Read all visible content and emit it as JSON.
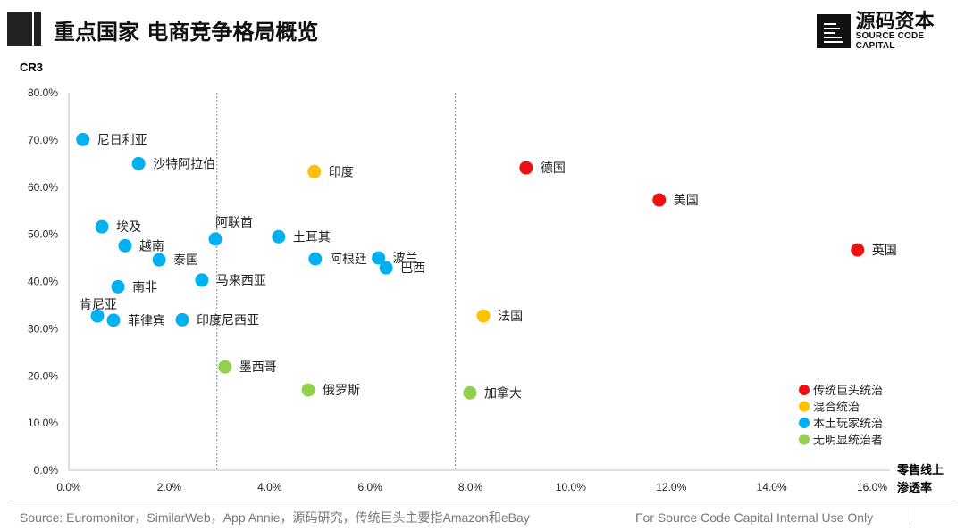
{
  "header": {
    "title": "重点国家 电商竞争格局概览"
  },
  "logo": {
    "cn": "源码资本",
    "en": "SOURCE CODE CAPITAL"
  },
  "footer": {
    "source": "Source: Euromonitor，SimilarWeb，App Annie，源码研究，传统巨头主要指Amazon和eBay",
    "note": "For Source Code Capital Internal Use Only"
  },
  "chart_data": {
    "type": "scatter",
    "title": "重点国家 电商竞争格局概览",
    "xlabel": "零售线上渗透率",
    "xlabel_lines": [
      "零售线上",
      "渗透率"
    ],
    "ylabel": "CR3",
    "xlim": [
      0,
      16
    ],
    "ylim": [
      0,
      80
    ],
    "xticks": [
      "0.0%",
      "2.0%",
      "4.0%",
      "6.0%",
      "8.0%",
      "10.0%",
      "12.0%",
      "14.0%",
      "16.0%"
    ],
    "yticks": [
      "0.0%",
      "10.0%",
      "20.0%",
      "30.0%",
      "40.0%",
      "50.0%",
      "60.0%",
      "70.0%",
      "80.0%"
    ],
    "reference_lines_x": [
      2.95,
      7.7
    ],
    "legend_position": "bottom-right",
    "categories": [
      {
        "key": "traditional",
        "name": "传统巨头统治",
        "color": "#ee1111"
      },
      {
        "key": "mixed",
        "name": "混合统治",
        "color": "#ffc000"
      },
      {
        "key": "local",
        "name": "本土玩家统治",
        "color": "#00b0f0"
      },
      {
        "key": "none",
        "name": "无明显统治者",
        "color": "#92d050"
      }
    ],
    "points": [
      {
        "label": "尼日利亚",
        "x": 0.28,
        "y": 70.1,
        "cat": "local"
      },
      {
        "label": "沙特阿拉伯",
        "x": 1.39,
        "y": 65.0,
        "cat": "local"
      },
      {
        "label": "印度",
        "x": 4.89,
        "y": 63.3,
        "cat": "mixed"
      },
      {
        "label": "德国",
        "x": 9.11,
        "y": 64.1,
        "cat": "traditional"
      },
      {
        "label": "美国",
        "x": 11.76,
        "y": 57.3,
        "cat": "traditional"
      },
      {
        "label": "英国",
        "x": 15.71,
        "y": 46.7,
        "cat": "traditional"
      },
      {
        "label": "埃及",
        "x": 0.66,
        "y": 51.6,
        "cat": "local"
      },
      {
        "label": "越南",
        "x": 1.12,
        "y": 47.6,
        "cat": "local"
      },
      {
        "label": "泰国",
        "x": 1.8,
        "y": 44.6,
        "cat": "local"
      },
      {
        "label": "阿联酋",
        "x": 2.92,
        "y": 49.0,
        "cat": "local"
      },
      {
        "label": "土耳其",
        "x": 4.18,
        "y": 49.5,
        "cat": "local"
      },
      {
        "label": "阿根廷",
        "x": 4.91,
        "y": 44.8,
        "cat": "local"
      },
      {
        "label": "波兰",
        "x": 6.17,
        "y": 45.0,
        "cat": "local"
      },
      {
        "label": "巴西",
        "x": 6.32,
        "y": 42.9,
        "cat": "local"
      },
      {
        "label": "南非",
        "x": 0.98,
        "y": 38.9,
        "cat": "local"
      },
      {
        "label": "马来西亚",
        "x": 2.65,
        "y": 40.3,
        "cat": "local"
      },
      {
        "label": "肯尼亚",
        "x": 0.57,
        "y": 32.7,
        "cat": "local"
      },
      {
        "label": "菲律宾",
        "x": 0.89,
        "y": 31.8,
        "cat": "local"
      },
      {
        "label": "印度尼西亚",
        "x": 2.26,
        "y": 31.9,
        "cat": "local"
      },
      {
        "label": "法国",
        "x": 8.26,
        "y": 32.7,
        "cat": "mixed"
      },
      {
        "label": "墨西哥",
        "x": 3.11,
        "y": 21.9,
        "cat": "none"
      },
      {
        "label": "俄罗斯",
        "x": 4.77,
        "y": 17.0,
        "cat": "none"
      },
      {
        "label": "加拿大",
        "x": 7.99,
        "y": 16.4,
        "cat": "none"
      }
    ]
  }
}
